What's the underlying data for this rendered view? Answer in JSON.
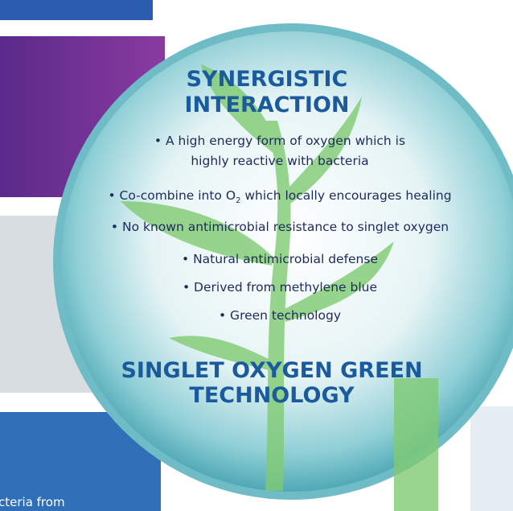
{
  "heading": {
    "lines": [
      "SYNERGISTIC",
      "INTERACTION"
    ]
  },
  "bullets": [
    {
      "lines": [
        "• A high energy form of oxygen which is",
        "highly reactive with bacteria"
      ]
    },
    {
      "parts": {
        "before": "• Co-combine into O",
        "subscript": "2",
        "after": " which locally encourages healing"
      }
    },
    {
      "lines": [
        "• No known antimicrobial resistance to singlet oxygen"
      ]
    },
    {
      "lines": [
        "• Natural antimicrobial defense"
      ]
    },
    {
      "lines": [
        "• Derived from methylene blue"
      ]
    },
    {
      "lines": [
        "• Green technology"
      ]
    }
  ],
  "footer_title": {
    "lines": [
      "SINGLET OXYGEN GREEN",
      "TECHNOLOGY"
    ]
  },
  "cropped_text": "cteria from"
}
